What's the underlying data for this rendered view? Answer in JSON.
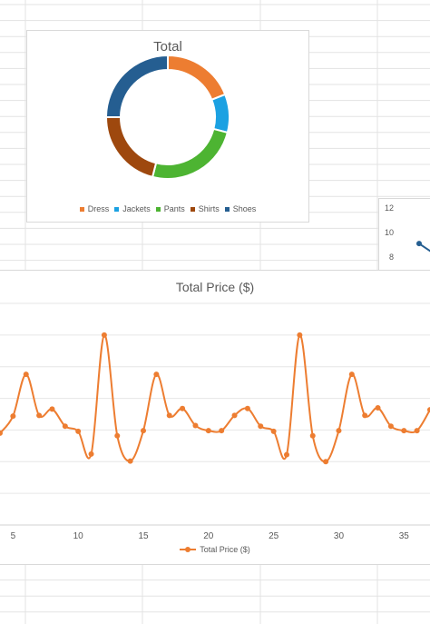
{
  "chart_data": [
    {
      "type": "pie",
      "title": "Total",
      "categories": [
        "Dress",
        "Jackets",
        "Pants",
        "Shirts",
        "Shoes"
      ],
      "values": [
        19,
        10,
        25,
        21,
        25
      ],
      "colors": [
        "#ed7d31",
        "#1ba1e2",
        "#4db432",
        "#9e480e",
        "#255e91"
      ],
      "legend": "bottom"
    },
    {
      "type": "line",
      "title": "Total Price ($)",
      "series": [
        {
          "name": "Total Price ($)",
          "color": "#ed7d31",
          "x": [
            4,
            5,
            6,
            7,
            8,
            9,
            10,
            11,
            12,
            13,
            14,
            15,
            16,
            17,
            18,
            19,
            20,
            21,
            22,
            23,
            24,
            25,
            26,
            27,
            28,
            29,
            30,
            31,
            32,
            33,
            34,
            35,
            36,
            37
          ],
          "y": [
            9.5,
            12.2,
            18.8,
            12.3,
            13.3,
            10.6,
            9.8,
            6.2,
            25,
            9.1,
            5.1,
            9.9,
            18.8,
            12.3,
            13.4,
            10.7,
            9.9,
            9.9,
            12.3,
            13.4,
            10.6,
            9.8,
            6.1,
            25,
            9.1,
            5,
            9.9,
            18.8,
            12.3,
            13.5,
            10.6,
            9.9,
            9.9,
            13.2
          ]
        }
      ],
      "xticks": [
        5,
        10,
        15,
        20,
        25,
        30,
        35
      ],
      "xlim": [
        4,
        37
      ],
      "ylim": [
        -5,
        30
      ],
      "grid": true,
      "legend": "bottom"
    },
    {
      "type": "line",
      "series": [
        {
          "color": "#255e91",
          "x": [
            0,
            1
          ],
          "y": [
            9.1,
            8.2
          ]
        }
      ],
      "yticks": [
        8,
        10,
        12
      ],
      "note": "partially visible chart at right edge"
    }
  ]
}
